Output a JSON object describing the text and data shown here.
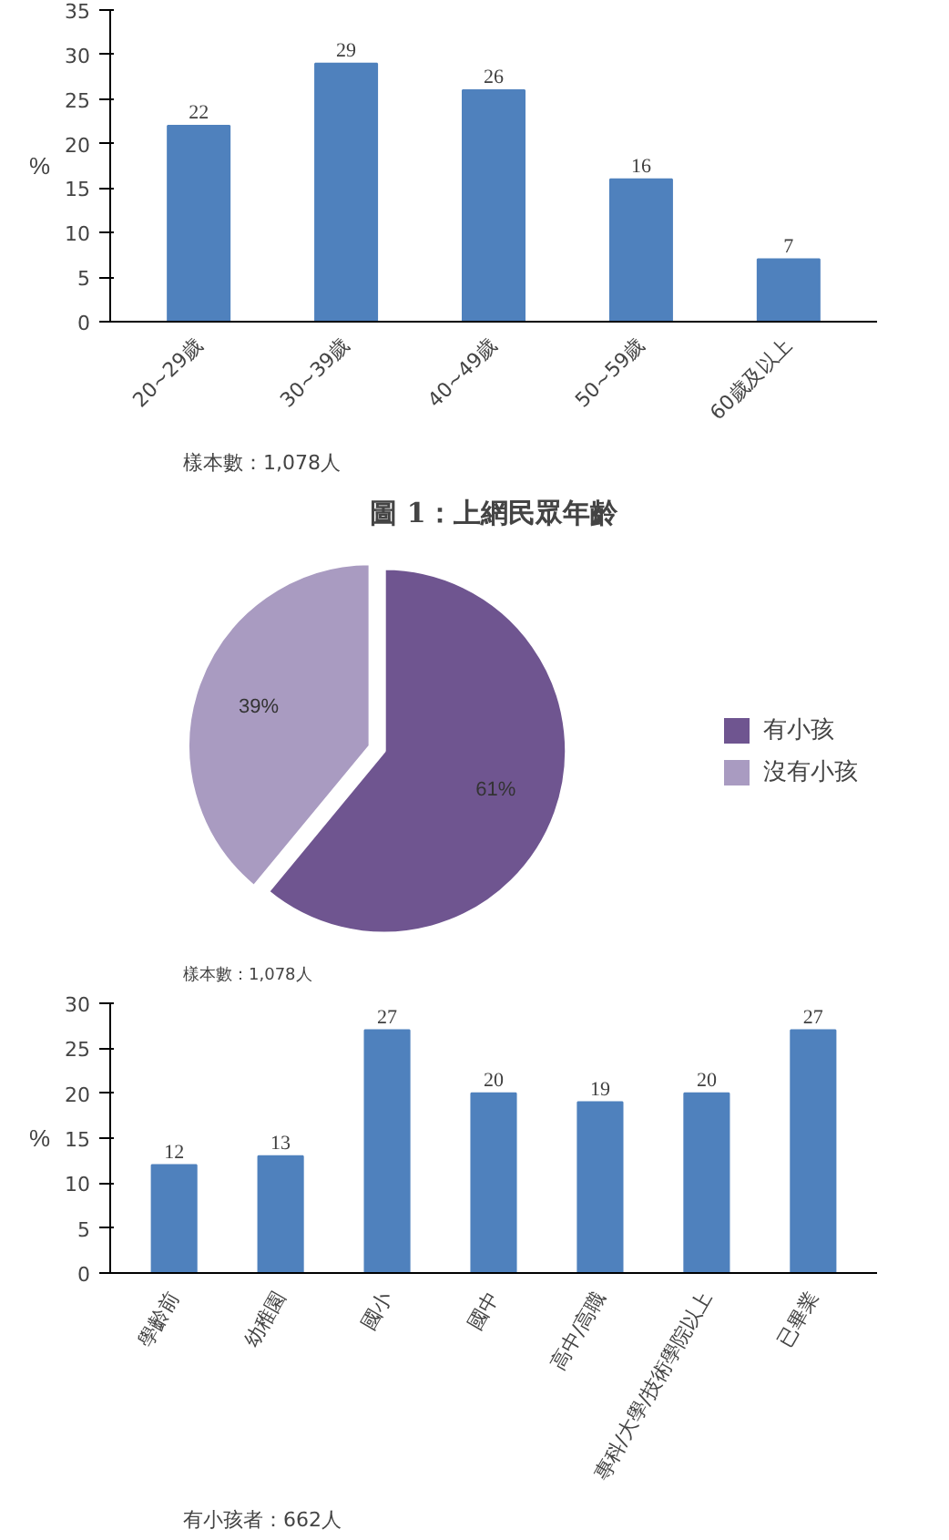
{
  "chart_data": [
    {
      "type": "bar",
      "title": "圖 1：上網民眾年齡",
      "ylabel": "%",
      "categories": [
        "20~29歲",
        "30~39歲",
        "40~49歲",
        "50~59歲",
        "60歲及以上"
      ],
      "values": [
        22,
        29,
        26,
        16,
        7
      ],
      "color": "#4f81bd",
      "ylim": [
        0,
        35
      ],
      "yticks": [
        0,
        5,
        10,
        15,
        20,
        25,
        30,
        35
      ],
      "data_labels": true,
      "annotations": [
        "樣本數：1,078人"
      ]
    },
    {
      "type": "pie",
      "categories": [
        "有小孩",
        "沒有小孩"
      ],
      "values": [
        61,
        39
      ],
      "colors": [
        "#6f5590",
        "#a99bc1"
      ],
      "value_labels": [
        "61%",
        "39%"
      ],
      "legend": "right",
      "annotations": [
        "樣本數：1,078人"
      ]
    },
    {
      "type": "bar",
      "ylabel": "%",
      "categories": [
        "學齡前",
        "幼稚園",
        "國小",
        "國中",
        "高中/高職",
        "專科/大學/技術學院以上",
        "已畢業"
      ],
      "values": [
        12,
        13,
        27,
        20,
        19,
        20,
        27
      ],
      "color": "#4f81bd",
      "ylim": [
        0,
        30
      ],
      "yticks": [
        0,
        5,
        10,
        15,
        20,
        25,
        30
      ],
      "data_labels": true,
      "annotations": [
        "有小孩者：662人"
      ]
    }
  ]
}
